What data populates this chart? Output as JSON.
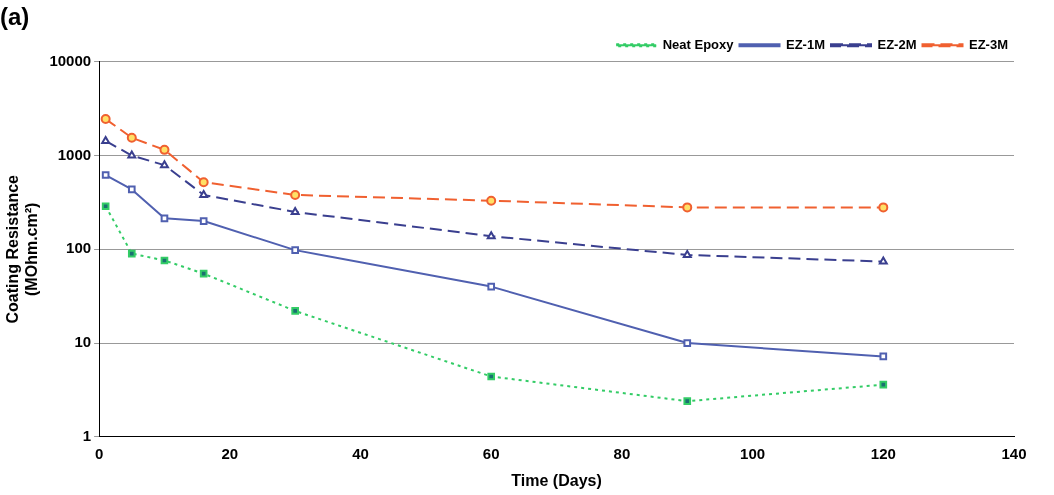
{
  "chart_data": {
    "type": "line",
    "title": "(a)",
    "xlabel": "Time (Days)",
    "ylabel": [
      "Coating Resistance",
      "(MOhm.cm²)"
    ],
    "xlim": [
      0,
      140
    ],
    "xticks": [
      0,
      20,
      40,
      60,
      80,
      100,
      120,
      140
    ],
    "ylim": [
      1,
      10000
    ],
    "yticks": [
      1,
      10,
      100,
      1000,
      10000
    ],
    "log": "y",
    "grid": "y",
    "legend": "top",
    "series": [
      {
        "name": "Neat Epoxy",
        "color": "#33cc66",
        "marker": "square",
        "line_style": "dotted",
        "x": [
          1,
          5,
          10,
          16,
          30,
          60,
          90,
          120
        ],
        "values": [
          288,
          90,
          76,
          55,
          22,
          4.4,
          2.4,
          3.6
        ]
      },
      {
        "name": "EZ-1M",
        "color": "#5060b0",
        "marker": "square",
        "line_style": "solid",
        "x": [
          1,
          5,
          10,
          16,
          30,
          60,
          90,
          120
        ],
        "values": [
          620,
          435,
          214,
          200,
          98,
          40,
          10,
          7.2
        ]
      },
      {
        "name": "EZ-2M",
        "color": "#3a3f8f",
        "marker": "triangle",
        "line_style": "dashed",
        "x": [
          1,
          5,
          10,
          16,
          30,
          60,
          90,
          120
        ],
        "values": [
          1430,
          1000,
          790,
          380,
          250,
          138,
          87,
          74
        ]
      },
      {
        "name": "EZ-3M",
        "color": "#f06030",
        "marker": "circle",
        "line_style": "dashed",
        "x": [
          1,
          5,
          10,
          16,
          30,
          60,
          90,
          120
        ],
        "values": [
          2450,
          1550,
          1150,
          520,
          380,
          330,
          280,
          280
        ]
      }
    ]
  }
}
